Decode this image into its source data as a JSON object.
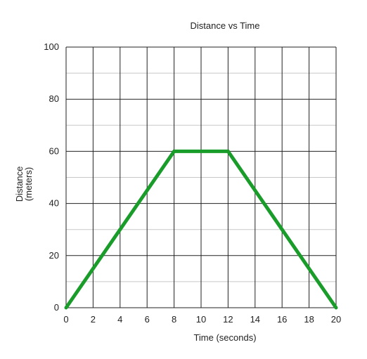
{
  "chart_data": {
    "type": "line",
    "title": "Distance vs Time",
    "xlabel": "Time (seconds)",
    "ylabel_line1": "Distance",
    "ylabel_line2": "(meters)",
    "xlim": [
      0,
      20
    ],
    "ylim": [
      0,
      100
    ],
    "x_ticks": [
      0,
      2,
      4,
      6,
      8,
      10,
      12,
      14,
      16,
      18,
      20
    ],
    "y_ticks": [
      0,
      20,
      40,
      60,
      80,
      100
    ],
    "minor_y_gridlines": [
      10,
      30,
      50,
      70,
      90
    ],
    "grid": true,
    "series": [
      {
        "x": [
          0,
          8,
          12,
          20
        ],
        "y": [
          0,
          60,
          60,
          0
        ],
        "color": "#1a9c2a"
      }
    ]
  }
}
